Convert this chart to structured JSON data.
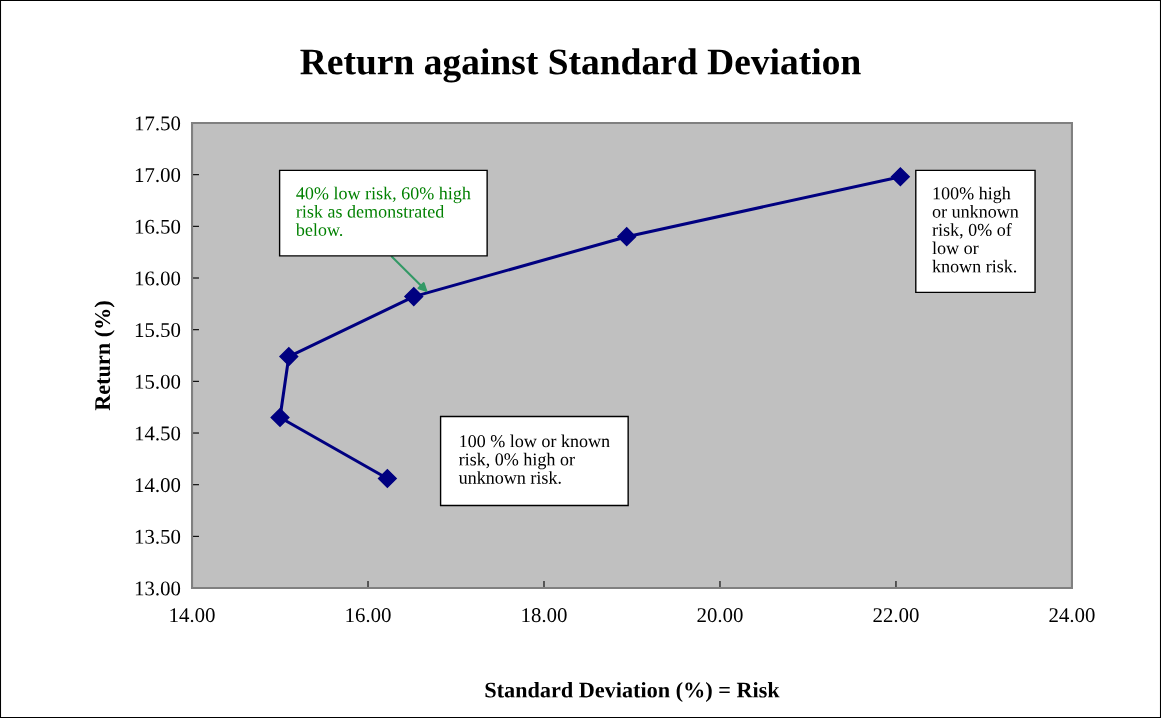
{
  "chart_data": {
    "type": "line",
    "title": "Return against Standard Deviation",
    "xlabel": "Standard Deviation (%) = Risk",
    "ylabel": "Return (%)",
    "x": [
      16.22,
      15.0,
      15.1,
      16.52,
      18.94,
      22.05
    ],
    "series": [
      {
        "color": "#000080",
        "values": [
          14.06,
          14.65,
          15.24,
          15.82,
          16.4,
          16.98
        ]
      }
    ],
    "marker": "diamond",
    "line_style": "solid",
    "grid": false,
    "legend": false,
    "xlim": [
      14,
      24
    ],
    "xticks": [
      {
        "value": 14,
        "label": "14.00"
      },
      {
        "value": 16,
        "label": "16.00"
      },
      {
        "value": 18,
        "label": "18.00"
      },
      {
        "value": 20,
        "label": "20.00"
      },
      {
        "value": 22,
        "label": "22.00"
      },
      {
        "value": 24,
        "label": "24.00"
      }
    ],
    "ylim": [
      13,
      17.5
    ],
    "yticks": [
      {
        "value": 13,
        "label": "13.00"
      },
      {
        "value": 13.5,
        "label": "13.50"
      },
      {
        "value": 14,
        "label": "14.00"
      },
      {
        "value": 14.5,
        "label": "14.50"
      },
      {
        "value": 15,
        "label": "15.00"
      },
      {
        "value": 15.5,
        "label": "15.50"
      },
      {
        "value": 16,
        "label": "16.00"
      },
      {
        "value": 16.5,
        "label": "16.50"
      },
      {
        "value": 17,
        "label": "17.00"
      },
      {
        "value": 17.5,
        "label": "17.50"
      }
    ],
    "annotations": [
      {
        "text": "40% low risk, 60% high\nrisk as demonstrated\nbelow.",
        "x": 16.68,
        "y": 15.86
      },
      "100% high\nor unknown\nrisk, 0% of\nlow or\nknown risk.",
      "100 % low or known\nrisk, 0% high or\nunknown risk."
    ]
  }
}
